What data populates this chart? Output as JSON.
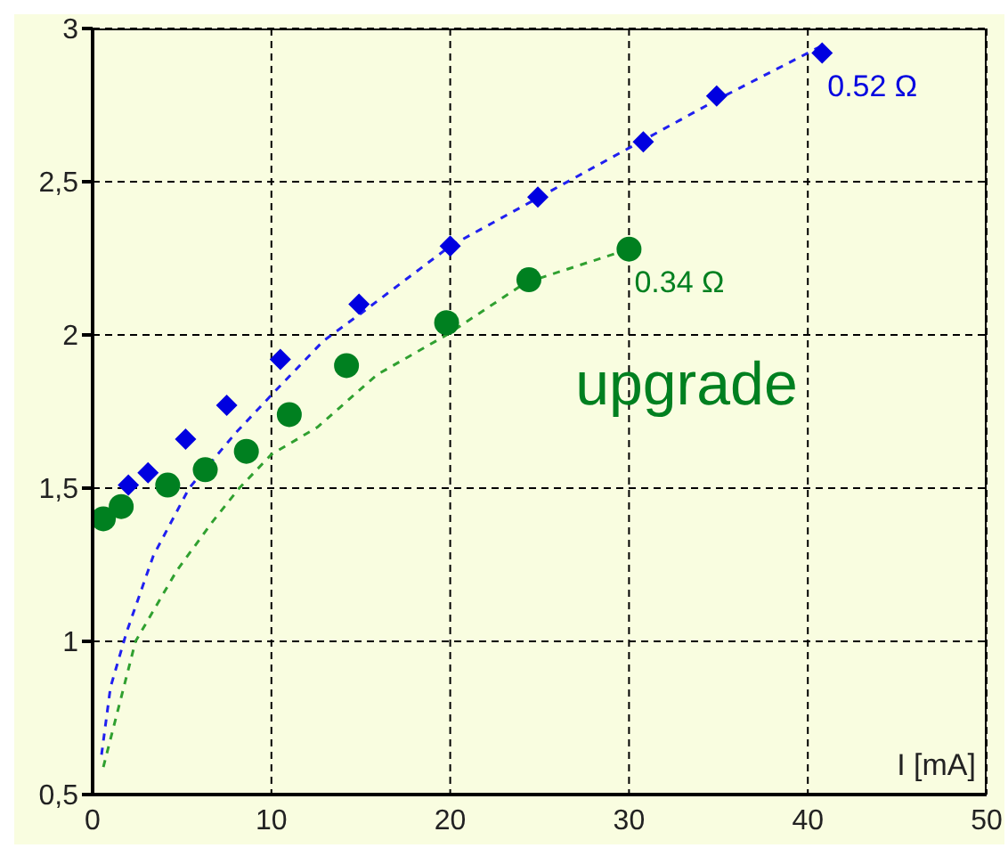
{
  "chart_data": {
    "type": "scatter",
    "xlabel": "I [mA]",
    "xlim": [
      0,
      50
    ],
    "xticks": [
      0,
      10,
      20,
      30,
      40,
      50
    ],
    "ylim": [
      0.5,
      3
    ],
    "yticks": [
      {
        "value": 0.5,
        "label": "0,5"
      },
      {
        "value": 1,
        "label": "1"
      },
      {
        "value": 1.5,
        "label": "1,5"
      },
      {
        "value": 2,
        "label": "2"
      },
      {
        "value": 2.5,
        "label": "2,5"
      },
      {
        "value": 3,
        "label": "3"
      }
    ],
    "grid": true,
    "series": [
      {
        "type": "scatter",
        "color": "#0000e0",
        "marker": "diamond",
        "x": [
          2.0,
          3.1,
          5.2,
          7.5,
          10.5,
          14.9,
          20.0,
          24.9,
          30.8,
          34.9,
          40.8
        ],
        "values": [
          1.51,
          1.55,
          1.66,
          1.77,
          1.92,
          2.1,
          2.29,
          2.45,
          2.63,
          2.78,
          2.92
        ]
      },
      {
        "type": "line",
        "color": "#2020f0",
        "marker": "none",
        "line_style": "dashed",
        "x": [
          0.5,
          1,
          1.9,
          3.4,
          5.4,
          8,
          10.1,
          12.9,
          15,
          20,
          25,
          30,
          35,
          41
        ],
        "values": [
          0.63,
          0.85,
          1.03,
          1.28,
          1.5,
          1.68,
          1.81,
          1.98,
          2.07,
          2.29,
          2.45,
          2.61,
          2.77,
          2.95
        ]
      },
      {
        "type": "scatter",
        "color": "#008020",
        "marker": "circle",
        "x": [
          0.6,
          1.6,
          4.2,
          6.3,
          8.6,
          11.0,
          14.2,
          19.8,
          24.4,
          30.0
        ],
        "values": [
          1.4,
          1.44,
          1.51,
          1.56,
          1.62,
          1.74,
          1.9,
          2.04,
          2.18,
          2.28
        ]
      },
      {
        "type": "line",
        "color": "#30a030",
        "marker": "none",
        "line_style": "dashed",
        "x": [
          0.6,
          2.4,
          4.7,
          6.7,
          8.2,
          10,
          12.6,
          15.9,
          19.8,
          24.2,
          30
        ],
        "values": [
          0.59,
          1.0,
          1.23,
          1.39,
          1.5,
          1.61,
          1.7,
          1.87,
          2.0,
          2.17,
          2.28
        ]
      }
    ],
    "annotations": [
      {
        "text": "0.52 Ω",
        "x": 40.8,
        "y": 2.92
      },
      {
        "text": "0.34 Ω",
        "x": 30.0,
        "y": 2.28
      },
      "upgrade"
    ]
  }
}
